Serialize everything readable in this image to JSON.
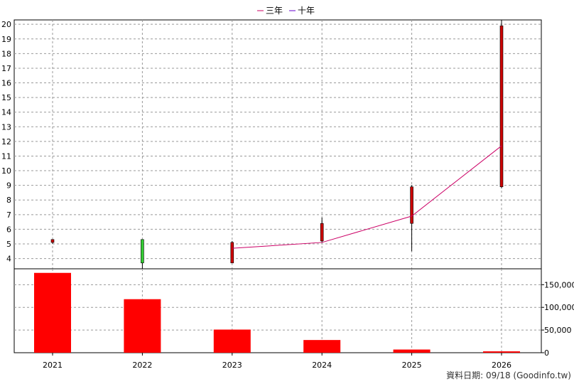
{
  "legend": [
    {
      "label": "三年",
      "color": "#cc0066"
    },
    {
      "label": "十年",
      "color": "#6600cc"
    }
  ],
  "footer": "資料日期: 09/18  (Goodinfo.tw)",
  "colors": {
    "up": "#cc0000",
    "down": "#33cc33",
    "volume": "#ff0000",
    "line3": "#cc0066"
  },
  "chart_data": [
    {
      "type": "candlestick",
      "categories": [
        "2021",
        "2022",
        "2023",
        "2024",
        "2025",
        "2026"
      ],
      "ylim": [
        3.3,
        20.3
      ],
      "yticks": [
        4,
        5,
        6,
        7,
        8,
        9,
        10,
        11,
        12,
        13,
        14,
        15,
        16,
        17,
        18,
        19,
        20
      ],
      "grid": true,
      "legend_position": "top-center",
      "candles": [
        {
          "open": 5.1,
          "close": 5.3,
          "high": 5.3,
          "low": 5.0,
          "dir": "up"
        },
        {
          "open": 5.3,
          "close": 3.7,
          "high": 5.3,
          "low": 3.3,
          "dir": "down"
        },
        {
          "open": 3.7,
          "close": 5.1,
          "high": 5.2,
          "low": 3.7,
          "dir": "up"
        },
        {
          "open": 5.2,
          "close": 6.4,
          "high": 6.8,
          "low": 5.1,
          "dir": "up"
        },
        {
          "open": 6.4,
          "close": 8.9,
          "high": 9.0,
          "low": 4.5,
          "dir": "up"
        },
        {
          "open": 8.9,
          "close": 19.9,
          "high": 20.3,
          "low": 8.8,
          "dir": "up"
        }
      ],
      "series": [
        {
          "name": "三年",
          "x": [
            "2023",
            "2024",
            "2025",
            "2026"
          ],
          "values": [
            4.7,
            5.1,
            6.9,
            11.7
          ]
        }
      ]
    },
    {
      "type": "bar",
      "categories": [
        "2021",
        "2022",
        "2023",
        "2024",
        "2025",
        "2026"
      ],
      "values": [
        176000,
        118000,
        51000,
        28000,
        7000,
        3000
      ],
      "ylim": [
        0,
        185000
      ],
      "yticks": [
        0,
        50000,
        100000,
        150000
      ],
      "ytick_labels": [
        "0",
        "50,000",
        "100,000",
        "150,000"
      ]
    }
  ]
}
